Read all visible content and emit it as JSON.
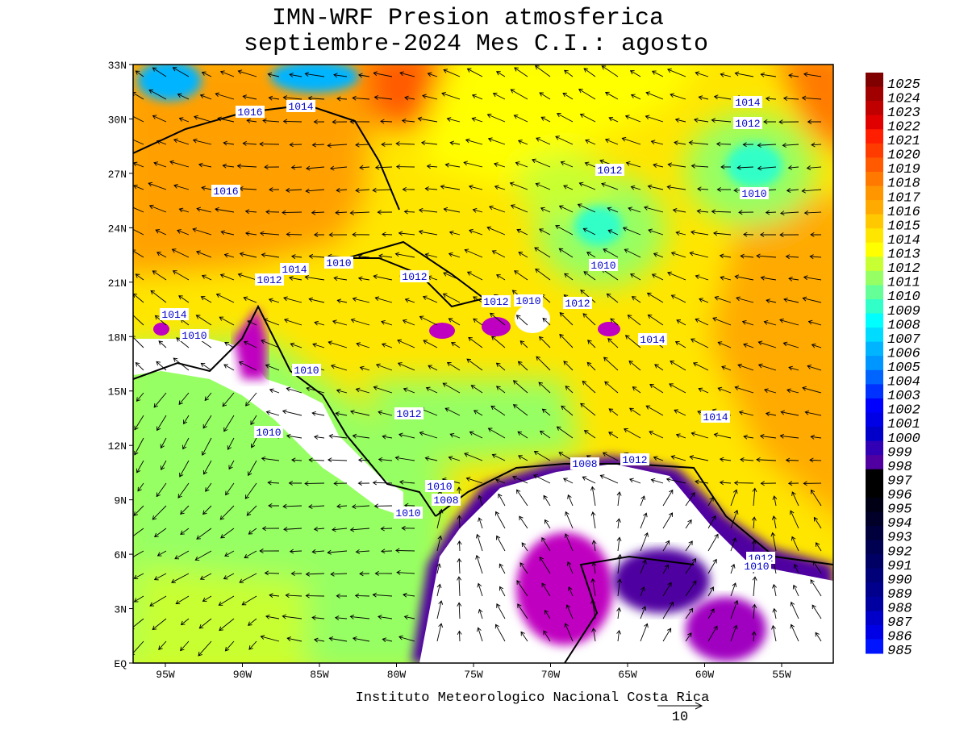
{
  "header": {
    "title": [
      "IMN-WRF  Presion atmosferica",
      "septiembre-2024 Mes C.I.: agosto"
    ]
  },
  "map": {
    "lat_labels": [
      "33N",
      "30N",
      "27N",
      "24N",
      "21N",
      "18N",
      "15N",
      "12N",
      "9N",
      "6N",
      "3N",
      "EQ"
    ],
    "lon_labels": [
      "95W",
      "90W",
      "85W",
      "80W",
      "75W",
      "70W",
      "65W",
      "60W",
      "55W"
    ],
    "contour_labels": [
      "1016",
      "1014",
      "1016",
      "1014",
      "1012",
      "1012",
      "1010",
      "1010",
      "1010",
      "1014",
      "1012",
      "1012",
      "1014",
      "1010",
      "1012",
      "1010",
      "1012",
      "1014",
      "1010",
      "1012",
      "1010",
      "1014",
      "1008",
      "1012",
      "1010",
      "1008",
      "1010",
      "1012",
      "1010"
    ]
  },
  "colorbar": {
    "levels": [
      "1025",
      "1024",
      "1023",
      "1022",
      "1021",
      "1020",
      "1019",
      "1018",
      "1017",
      "1016",
      "1015",
      "1014",
      "1013",
      "1012",
      "1011",
      "1010",
      "1009",
      "1008",
      "1007",
      "1006",
      "1005",
      "1004",
      "1003",
      "1002",
      "1001",
      "1000",
      "999",
      "998",
      "997",
      "996",
      "995",
      "994",
      "993",
      "992",
      "991",
      "990",
      "989",
      "988",
      "987",
      "986",
      "985"
    ],
    "colors": [
      "#800000",
      "#a00000",
      "#c00000",
      "#e00000",
      "#ff1e00",
      "#ff3c00",
      "#ff5a00",
      "#ff7800",
      "#ff9600",
      "#ffaa00",
      "#ffc800",
      "#ffe600",
      "#ffff00",
      "#c8ff32",
      "#96ff64",
      "#64ff96",
      "#32ffc8",
      "#00ffff",
      "#00dcff",
      "#00b4ff",
      "#0096ff",
      "#0064ff",
      "#0032ff",
      "#0000ff",
      "#0000e6",
      "#0000c8",
      "#3200b4",
      "#5000a0",
      "#000000",
      "#000000",
      "#000014",
      "#000028",
      "#00003c",
      "#000050",
      "#000064",
      "#000078",
      "#00008c",
      "#0000a0",
      "#0000c8",
      "#0000e6",
      "#0014ff"
    ]
  },
  "footer": {
    "credit": "Instituto Meteorologico Nacional Costa Rica",
    "vector_scale": "10"
  }
}
